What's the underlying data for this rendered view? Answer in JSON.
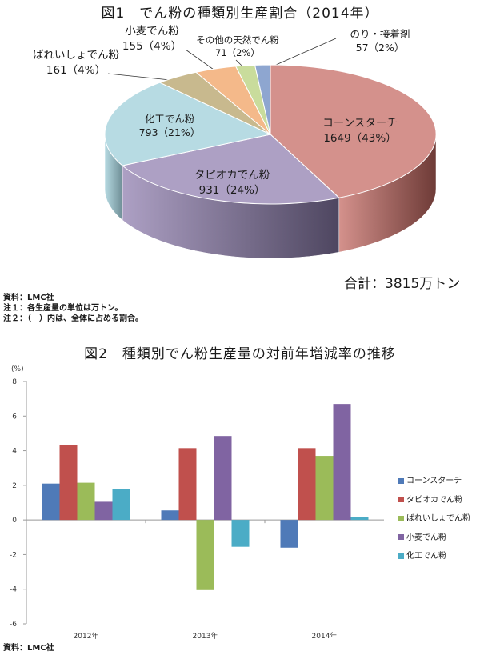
{
  "fig1": {
    "title": "図1　でん粉の種類別生産割合（2014年）",
    "total_text": "合計：3815万トン",
    "notes": [
      "資料：LMC社",
      "注１：各生産量の単位は万トン。",
      "注２：（　）内は、全体に占める割合。"
    ]
  },
  "fig2": {
    "title": "図2　種類別でん粉生産量の対前年増減率の推移",
    "y_unit": "(%)",
    "source": "資料：LMC社"
  },
  "chart_data": [
    {
      "type": "pie",
      "title": "図1　でん粉の種類別生産割合（2014年）",
      "slices": [
        {
          "name": "コーンスターチ",
          "value": 1649,
          "pct_label": "1649（43%）",
          "color": "#d4918c",
          "side_color": "#6e3b37"
        },
        {
          "name": "タピオカでん粉",
          "value": 931,
          "pct_label": "931（24%）",
          "color": "#ada0c4",
          "side_color": "#4e4660"
        },
        {
          "name": "化工でん粉",
          "value": 793,
          "pct_label": "793（21%）",
          "color": "#b7dbe3",
          "side_color": "#6f8e96"
        },
        {
          "name": "ばれいしょでん粉",
          "value": 161,
          "pct_label": "161（4%）",
          "color": "#c8b98e",
          "side_color": "#7c6f4a"
        },
        {
          "name": "小麦でん粉",
          "value": 155,
          "pct_label": "155（4%）",
          "color": "#f4b98a",
          "side_color": "#a87048"
        },
        {
          "name": "その他の天然でん粉",
          "value": 71,
          "pct_label": "71（2%）",
          "color": "#c9dc9c",
          "side_color": "#7d8f55"
        },
        {
          "name": "のり・接着剤",
          "value": 57,
          "pct_label": "57（2%）",
          "color": "#8ea6d0",
          "side_color": "#4d6288"
        }
      ],
      "total": "合計：3815万トン"
    },
    {
      "type": "bar",
      "title": "図2　種類別でん粉生産量の対前年増減率の推移",
      "categories": [
        "2012年",
        "2013年",
        "2014年"
      ],
      "ylabel": "(%)",
      "ylim": [
        -6,
        8
      ],
      "yticks": [
        "8",
        "6",
        "4",
        "2",
        "0",
        "-2",
        "-4",
        "-6"
      ],
      "grid": false,
      "legend_position": "right",
      "series": [
        {
          "name": "コーンスターチ",
          "color": "#4f7ab8",
          "values": [
            2.1,
            0.55,
            -1.6
          ]
        },
        {
          "name": "タピオカでん粉",
          "color": "#c0504d",
          "values": [
            4.35,
            4.15,
            4.15
          ]
        },
        {
          "name": "ばれいしょでん粉",
          "color": "#9bbb59",
          "values": [
            2.15,
            -4.05,
            3.7
          ]
        },
        {
          "name": "小麦でん粉",
          "color": "#8064a2",
          "values": [
            1.05,
            4.85,
            6.7
          ]
        },
        {
          "name": "化工でん粉",
          "color": "#4bacc6",
          "values": [
            1.8,
            -1.55,
            0.15
          ]
        }
      ]
    }
  ]
}
